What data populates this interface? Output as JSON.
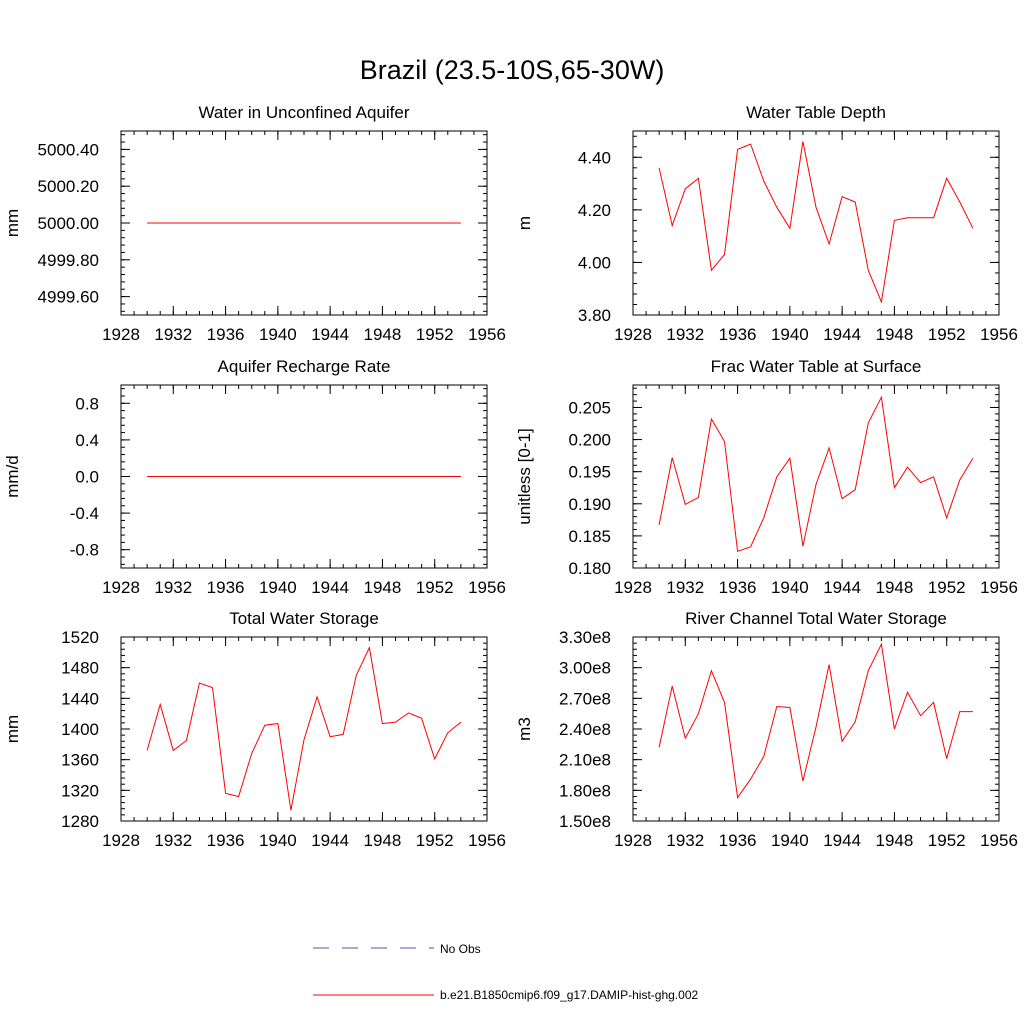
{
  "page": {
    "title": "Brazil (23.5-10S,65-30W)"
  },
  "legend": {
    "items": [
      {
        "label": "No Obs",
        "color": "#4a56b5",
        "style": "dashed"
      },
      {
        "label": "b.e21.B1850cmip6.f09_g17.DAMIP-hist-ghg.002",
        "color": "#ff0000",
        "style": "solid"
      }
    ]
  },
  "chart_data": [
    {
      "type": "line",
      "title": "Water in Unconfined Aquifer",
      "ylabel": "mm",
      "xlim": [
        1928,
        1956
      ],
      "ylim": [
        4999.5,
        5000.5
      ],
      "xticks": [
        1928,
        1932,
        1936,
        1940,
        1944,
        1948,
        1952,
        1956
      ],
      "xtick_labels": [
        "1928",
        "1932",
        "1936",
        "1940",
        "1944",
        "1948",
        "1952",
        "1956"
      ],
      "yticks": [
        4999.6,
        4999.8,
        5000.0,
        5000.2,
        5000.4
      ],
      "ytick_labels": [
        "4999.60",
        "4999.80",
        "5000.00",
        "5000.20",
        "5000.40"
      ],
      "series": [
        {
          "color": "#ff0000",
          "x": [
            1930,
            1954
          ],
          "y": [
            5000.0,
            5000.0
          ]
        }
      ]
    },
    {
      "type": "line",
      "title": "Water Table Depth",
      "ylabel": "m",
      "xlim": [
        1928,
        1956
      ],
      "ylim": [
        3.8,
        4.5
      ],
      "xticks": [
        1928,
        1932,
        1936,
        1940,
        1944,
        1948,
        1952,
        1956
      ],
      "xtick_labels": [
        "1928",
        "1932",
        "1936",
        "1940",
        "1944",
        "1948",
        "1952",
        "1956"
      ],
      "yticks": [
        3.8,
        4.0,
        4.2,
        4.4
      ],
      "ytick_labels": [
        "3.80",
        "4.00",
        "4.20",
        "4.40"
      ],
      "series": [
        {
          "color": "#ff0000",
          "x": [
            1930,
            1931,
            1932,
            1933,
            1934,
            1935,
            1936,
            1937,
            1938,
            1939,
            1940,
            1941,
            1942,
            1943,
            1944,
            1945,
            1946,
            1947,
            1948,
            1949,
            1950,
            1951,
            1952,
            1953,
            1954
          ],
          "y": [
            4.36,
            4.14,
            4.28,
            4.32,
            3.97,
            4.03,
            4.43,
            4.45,
            4.31,
            4.21,
            4.13,
            4.46,
            4.21,
            4.07,
            4.25,
            4.23,
            3.97,
            3.85,
            4.16,
            4.17,
            4.17,
            4.17,
            4.32,
            4.23,
            4.13
          ]
        }
      ]
    },
    {
      "type": "line",
      "title": "Aquifer Recharge Rate",
      "ylabel": "mm/d",
      "xlim": [
        1928,
        1956
      ],
      "ylim": [
        -1.0,
        1.0
      ],
      "xticks": [
        1928,
        1932,
        1936,
        1940,
        1944,
        1948,
        1952,
        1956
      ],
      "xtick_labels": [
        "1928",
        "1932",
        "1936",
        "1940",
        "1944",
        "1948",
        "1952",
        "1956"
      ],
      "yticks": [
        -0.8,
        -0.4,
        0.0,
        0.4,
        0.8
      ],
      "ytick_labels": [
        "-0.8",
        "-0.4",
        "0.0",
        "0.4",
        "0.8"
      ],
      "series": [
        {
          "color": "#ff0000",
          "x": [
            1930,
            1954
          ],
          "y": [
            0.0,
            0.0
          ]
        }
      ]
    },
    {
      "type": "line",
      "title": "Frac Water Table at Surface",
      "ylabel": "unitless [0-1]",
      "xlim": [
        1928,
        1956
      ],
      "ylim": [
        0.18,
        0.2085
      ],
      "xticks": [
        1928,
        1932,
        1936,
        1940,
        1944,
        1948,
        1952,
        1956
      ],
      "xtick_labels": [
        "1928",
        "1932",
        "1936",
        "1940",
        "1944",
        "1948",
        "1952",
        "1956"
      ],
      "yticks": [
        0.18,
        0.185,
        0.19,
        0.195,
        0.2,
        0.205
      ],
      "ytick_labels": [
        "0.180",
        "0.185",
        "0.190",
        "0.195",
        "0.200",
        "0.205"
      ],
      "series": [
        {
          "color": "#ff0000",
          "x": [
            1930,
            1931,
            1932,
            1933,
            1934,
            1935,
            1936,
            1937,
            1938,
            1939,
            1940,
            1941,
            1942,
            1943,
            1944,
            1945,
            1946,
            1947,
            1948,
            1949,
            1950,
            1951,
            1952,
            1953,
            1954
          ],
          "y": [
            0.1867,
            0.1972,
            0.1899,
            0.191,
            0.2032,
            0.1997,
            0.1826,
            0.1833,
            0.1878,
            0.1942,
            0.1971,
            0.1834,
            0.193,
            0.1987,
            0.1908,
            0.1922,
            0.2026,
            0.2066,
            0.1925,
            0.1957,
            0.1933,
            0.1942,
            0.1878,
            0.1937,
            0.1971
          ]
        }
      ]
    },
    {
      "type": "line",
      "title": "Total Water Storage",
      "ylabel": "mm",
      "xlim": [
        1928,
        1956
      ],
      "ylim": [
        1280,
        1520
      ],
      "xticks": [
        1928,
        1932,
        1936,
        1940,
        1944,
        1948,
        1952,
        1956
      ],
      "xtick_labels": [
        "1928",
        "1932",
        "1936",
        "1940",
        "1944",
        "1948",
        "1952",
        "1956"
      ],
      "yticks": [
        1280,
        1320,
        1360,
        1400,
        1440,
        1480,
        1520
      ],
      "ytick_labels": [
        "1280",
        "1320",
        "1360",
        "1400",
        "1440",
        "1480",
        "1520"
      ],
      "series": [
        {
          "color": "#ff0000",
          "x": [
            1930,
            1931,
            1932,
            1933,
            1934,
            1935,
            1936,
            1937,
            1938,
            1939,
            1940,
            1941,
            1942,
            1943,
            1944,
            1945,
            1946,
            1947,
            1948,
            1949,
            1950,
            1951,
            1952,
            1953,
            1954
          ],
          "y": [
            1372,
            1432,
            1372,
            1385,
            1460,
            1454,
            1316,
            1312,
            1368,
            1405,
            1407,
            1294,
            1386,
            1442,
            1390,
            1393,
            1470,
            1506,
            1407,
            1409,
            1421,
            1414,
            1361,
            1395,
            1409
          ]
        }
      ]
    },
    {
      "type": "line",
      "title": "River Channel Total Water Storage",
      "ylabel": "m3",
      "xlim": [
        1928,
        1956
      ],
      "ylim": [
        150000000,
        330000000
      ],
      "xticks": [
        1928,
        1932,
        1936,
        1940,
        1944,
        1948,
        1952,
        1956
      ],
      "xtick_labels": [
        "1928",
        "1932",
        "1936",
        "1940",
        "1944",
        "1948",
        "1952",
        "1956"
      ],
      "yticks": [
        150000000,
        180000000,
        210000000,
        240000000,
        270000000,
        300000000,
        330000000
      ],
      "ytick_labels": [
        "1.50e8",
        "1.80e8",
        "2.10e8",
        "2.40e8",
        "2.70e8",
        "3.00e8",
        "3.30e8"
      ],
      "series": [
        {
          "color": "#ff0000",
          "x": [
            1930,
            1931,
            1932,
            1933,
            1934,
            1935,
            1936,
            1937,
            1938,
            1939,
            1940,
            1941,
            1942,
            1943,
            1944,
            1945,
            1946,
            1947,
            1948,
            1949,
            1950,
            1951,
            1952,
            1953,
            1954
          ],
          "y": [
            222000000,
            282000000,
            231000000,
            255000000,
            297000000,
            266000000,
            173000000,
            191000000,
            213000000,
            262000000,
            261000000,
            189000000,
            242000000,
            303000000,
            228000000,
            247000000,
            297000000,
            323000000,
            240000000,
            276000000,
            253000000,
            266000000,
            211000000,
            257000000,
            257000000
          ]
        }
      ]
    }
  ]
}
